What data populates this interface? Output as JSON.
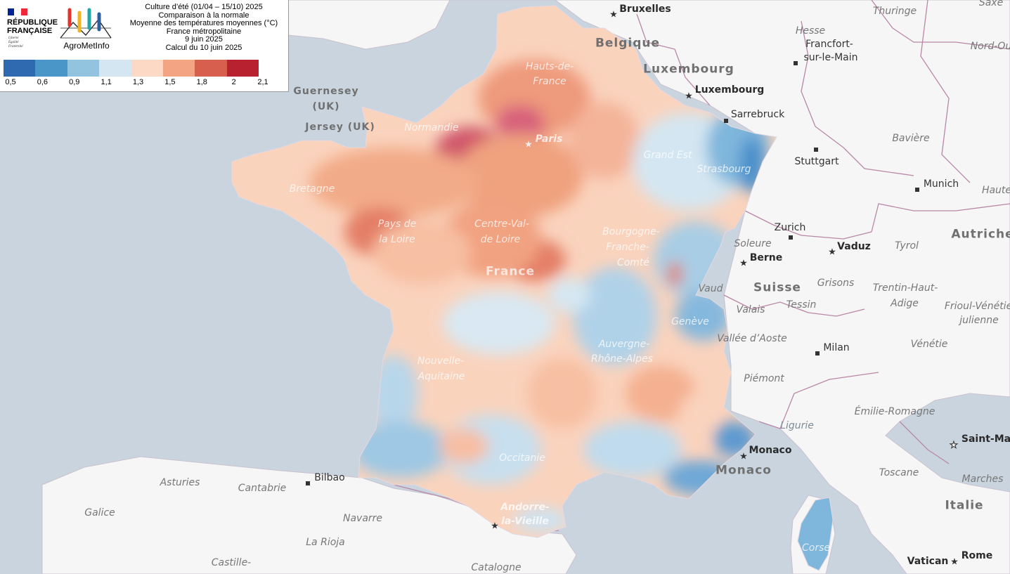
{
  "legend": {
    "republique": [
      "RÉPUBLIQUE",
      "FRANÇAISE"
    ],
    "devise": [
      "Liberté",
      "Égalité",
      "Fraternité"
    ],
    "logo_name": "AgroMetInfo",
    "title_lines": [
      "Culture d’été (01/04 – 15/10) 2025",
      "Comparaison à la normale",
      "Moyenne des températures moyennes (°C)",
      "France métropolitaine",
      "9 juin 2025",
      "Calcul du 10 juin 2025"
    ],
    "scale_colors": [
      "#2f69b0",
      "#4a96c8",
      "#92c4e0",
      "#d4e6f1",
      "#fbd9c4",
      "#f3a482",
      "#d6604d",
      "#b72130"
    ],
    "scale_labels": [
      "0,5",
      "0,6",
      "0,9",
      "1,1",
      "1,3",
      "1,5",
      "1,8",
      "2",
      "2,1"
    ]
  },
  "map_labels": {
    "countries": [
      "Belgique",
      "Luxembourg",
      "Suisse",
      "Monaco",
      "Italie",
      "Autriche"
    ],
    "capitals": [
      "Bruxelles",
      "Luxembourg",
      "Berne",
      "Vaduz",
      "Monaco",
      "Andorre-la-Vieille",
      "Vatican",
      "Rome",
      "Saint-Ma"
    ],
    "cities": [
      "Francfort-",
      "sur-le-Main",
      "Sarrebruck",
      "Stuttgart",
      "Munich",
      "Zurich",
      "Milan",
      "Bilbao",
      "Strasbourg",
      "Genève",
      "Paris"
    ],
    "regions": [
      "Thuringe",
      "Hesse",
      "Nord-Ou",
      "Bavière",
      "Haute",
      "Tyrol",
      "Soleure",
      "Grisons",
      "Trentin-Haut-",
      "Adige",
      "Frioul-Vénétie",
      "julienne",
      "Vénétie",
      "Vaud",
      "Valais",
      "Tessin",
      "Vallée d’Aoste",
      "Piémont",
      "Émilie-Romagne",
      "Ligurie",
      "Toscane",
      "Marches",
      "Asturies",
      "Cantabrie",
      "Galice",
      "Navarre",
      "La Rioja",
      "Castille-",
      "Catalogne",
      "Guernesey",
      "(UK)",
      "Jersey (UK)",
      "Bretagne",
      "Normandie",
      "Hauts-de-",
      "France",
      "Grand Est",
      "Pays de",
      "la Loire",
      "Centre-Val-",
      "de Loire",
      "Bourgogne-",
      "Franche-",
      "Comté",
      "Nouvelle-",
      "Aquitaine",
      "Auvergne-",
      "Rhône-Alpes",
      "Occitanie",
      "Corse",
      "Saxe"
    ],
    "france": "France"
  },
  "colors": {
    "sea": "#c9d4de",
    "land": "#f6f6f6",
    "border": "#b987a6"
  }
}
